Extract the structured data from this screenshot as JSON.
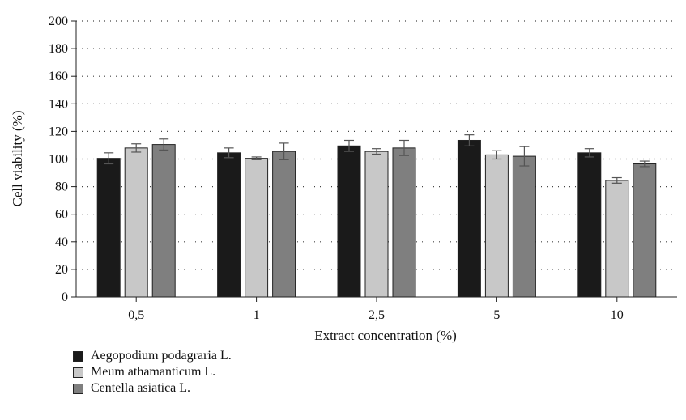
{
  "chart_data": {
    "type": "bar",
    "categories": [
      "0,5",
      "1",
      "2,5",
      "5",
      "10"
    ],
    "series": [
      {
        "name": "Aegopodium podagraria L.",
        "color": "#1a1a1a",
        "values": [
          100.5,
          104.5,
          109.5,
          113.5,
          104.5
        ],
        "errors": [
          4,
          3.5,
          4,
          4,
          3
        ]
      },
      {
        "name": "Meum athamanticum L.",
        "color": "#c8c8c8",
        "values": [
          108,
          100.5,
          105.5,
          103,
          84.5
        ],
        "errors": [
          3,
          1,
          2,
          3,
          2
        ]
      },
      {
        "name": "Centella asiatica L.",
        "color": "#7f7f7f",
        "values": [
          110.5,
          105.5,
          108,
          102,
          96.5
        ],
        "errors": [
          4,
          6,
          5.5,
          7,
          2
        ]
      }
    ],
    "title": "",
    "xlabel": "Extract concentration (%)",
    "ylabel": "Cell viability (%)",
    "ylim": [
      0,
      200
    ],
    "yticks": [
      0,
      20,
      40,
      60,
      80,
      100,
      120,
      140,
      160,
      180,
      200
    ],
    "grid": "dotted horizontal",
    "legend_position": "bottom-left"
  }
}
